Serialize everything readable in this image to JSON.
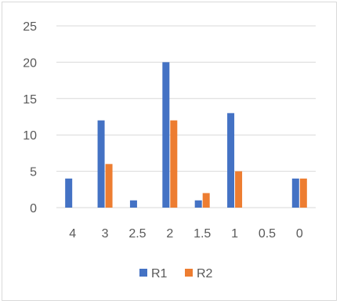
{
  "chart_data": {
    "type": "bar",
    "title": "",
    "xlabel": "",
    "ylabel": "",
    "categories": [
      "4",
      "3",
      "2.5",
      "2",
      "1.5",
      "1",
      "0.5",
      "0"
    ],
    "series": [
      {
        "name": "R1",
        "color": "#4472c4",
        "values": [
          4,
          12,
          1,
          20,
          1,
          13,
          0,
          4
        ]
      },
      {
        "name": "R2",
        "color": "#ed7d31",
        "values": [
          0,
          6,
          0,
          12,
          2,
          5,
          0,
          4
        ]
      }
    ],
    "ylim": [
      0,
      25
    ],
    "yticks": [
      0,
      5,
      10,
      15,
      20,
      25
    ],
    "grid": true,
    "legend_position": "bottom"
  }
}
